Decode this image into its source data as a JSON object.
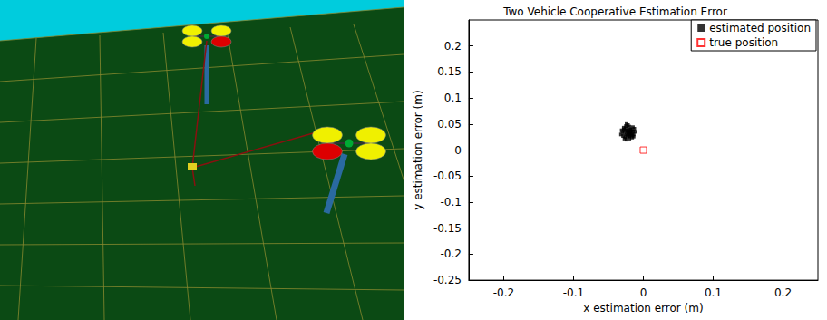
{
  "chart_data": {
    "type": "scatter",
    "title": "Two Vehicle Cooperative Estimation Error",
    "x_label": "x estimation error (m)",
    "y_label": "y estimation error (m)",
    "xlim": [
      -0.25,
      0.25
    ],
    "xticks": [
      -0.2,
      -0.1,
      0,
      0.1,
      0.2
    ],
    "ylim": [
      -0.25,
      0.25
    ],
    "yticks": [
      -0.25,
      -0.2,
      -0.15,
      -0.1,
      -0.05,
      0,
      0.05,
      0.1,
      0.15,
      0.2
    ],
    "grid": false,
    "legend": "upper right",
    "series": [
      {
        "name": "estimated position",
        "color": "#000000",
        "marker": "square",
        "x": [
          -0.03,
          -0.028,
          -0.025,
          -0.022,
          -0.02,
          -0.018,
          -0.015,
          -0.013,
          -0.032,
          -0.027,
          -0.024,
          -0.021,
          -0.019,
          -0.016,
          -0.012,
          -0.029,
          -0.026,
          -0.023,
          -0.02,
          -0.017,
          -0.014,
          -0.031,
          -0.025,
          -0.022,
          -0.018,
          -0.015,
          -0.027,
          -0.024,
          -0.02,
          -0.016,
          -0.028,
          -0.023,
          -0.019,
          -0.026,
          -0.021,
          -0.017,
          -0.024,
          -0.02,
          -0.014,
          -0.022
        ],
        "y": [
          0.035,
          0.04,
          0.042,
          0.038,
          0.045,
          0.04,
          0.036,
          0.041,
          0.03,
          0.033,
          0.03,
          0.034,
          0.032,
          0.03,
          0.035,
          0.027,
          0.025,
          0.027,
          0.026,
          0.028,
          0.03,
          0.038,
          0.046,
          0.048,
          0.035,
          0.044,
          0.022,
          0.02,
          0.022,
          0.024,
          0.043,
          0.036,
          0.039,
          0.038,
          0.029,
          0.037,
          0.05,
          0.03,
          0.026,
          0.033
        ]
      },
      {
        "name": "true position",
        "color": "#ff0000",
        "marker": "open-square",
        "x": [
          0
        ],
        "y": [
          0
        ]
      }
    ]
  }
}
